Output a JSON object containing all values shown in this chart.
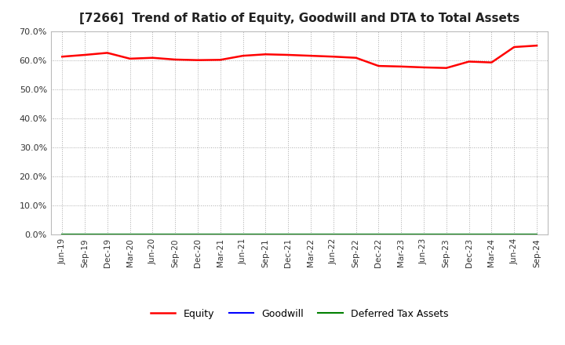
{
  "title": "[7266]  Trend of Ratio of Equity, Goodwill and DTA to Total Assets",
  "x_labels": [
    "Jun-19",
    "Sep-19",
    "Dec-19",
    "Mar-20",
    "Jun-20",
    "Sep-20",
    "Dec-20",
    "Mar-21",
    "Jun-21",
    "Sep-21",
    "Dec-21",
    "Mar-22",
    "Jun-22",
    "Sep-22",
    "Dec-22",
    "Mar-23",
    "Jun-23",
    "Sep-23",
    "Dec-23",
    "Mar-24",
    "Jun-24",
    "Sep-24"
  ],
  "equity": [
    61.2,
    61.8,
    62.5,
    60.5,
    60.8,
    60.2,
    60.0,
    60.1,
    61.5,
    62.0,
    61.8,
    61.5,
    61.2,
    60.8,
    58.0,
    57.8,
    57.5,
    57.3,
    59.5,
    59.2,
    64.5,
    65.0
  ],
  "goodwill": [
    0.0,
    0.0,
    0.0,
    0.0,
    0.0,
    0.0,
    0.0,
    0.0,
    0.0,
    0.0,
    0.0,
    0.0,
    0.0,
    0.0,
    0.0,
    0.0,
    0.0,
    0.0,
    0.0,
    0.0,
    0.0,
    0.0
  ],
  "dta": [
    0.0,
    0.0,
    0.0,
    0.0,
    0.0,
    0.0,
    0.0,
    0.0,
    0.0,
    0.0,
    0.0,
    0.0,
    0.0,
    0.0,
    0.0,
    0.0,
    0.0,
    0.0,
    0.0,
    0.0,
    0.0,
    0.0
  ],
  "equity_color": "#FF0000",
  "goodwill_color": "#0000FF",
  "dta_color": "#008000",
  "ylim": [
    0,
    70
  ],
  "yticks": [
    0,
    10,
    20,
    30,
    40,
    50,
    60,
    70
  ],
  "background_color": "#FFFFFF",
  "plot_bg_color": "#FFFFFF",
  "grid_color": "#AAAAAA",
  "title_fontsize": 11,
  "legend_labels": [
    "Equity",
    "Goodwill",
    "Deferred Tax Assets"
  ]
}
